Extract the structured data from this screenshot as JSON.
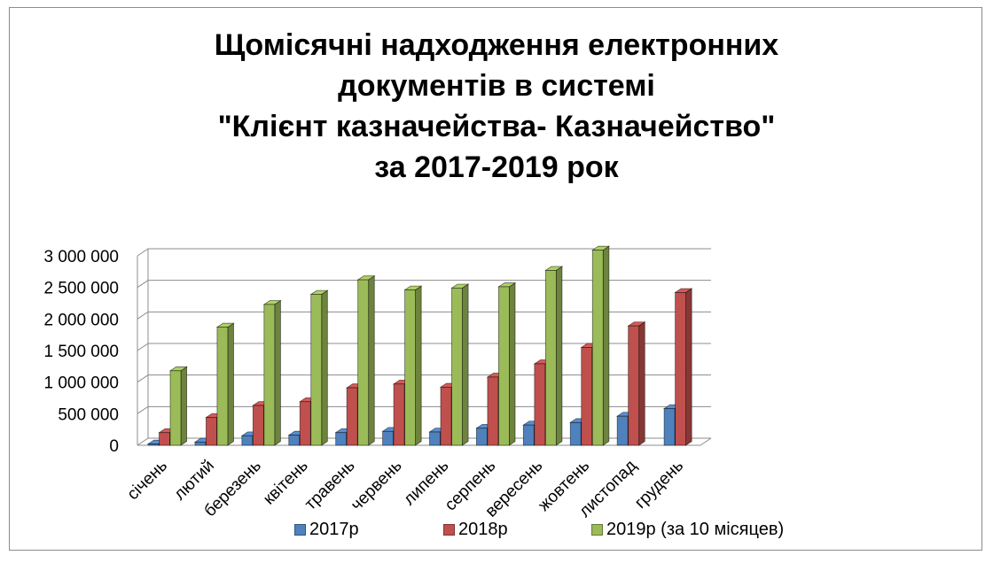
{
  "chart_data": {
    "type": "bar",
    "title_lines": [
      "Щомісячні надходження електронних",
      "документів в системі",
      "\"Клієнт казначейства- Казначейство\"",
      "за 2017-2019 рок"
    ],
    "categories": [
      "січень",
      "лютий",
      "березень",
      "квітень",
      "травень",
      "червень",
      "липень",
      "серпень",
      "вересень",
      "жовтень",
      "листопад",
      "грудень"
    ],
    "series": [
      {
        "name": "2017р",
        "color": "#4f81bd",
        "values": [
          20000,
          50000,
          150000,
          160000,
          200000,
          220000,
          210000,
          270000,
          320000,
          360000,
          460000,
          580000
        ]
      },
      {
        "name": "2018р",
        "color": "#c0504d",
        "values": [
          200000,
          440000,
          630000,
          690000,
          910000,
          970000,
          920000,
          1080000,
          1290000,
          1550000,
          1890000,
          2420000
        ]
      },
      {
        "name": "2019р (за 10 місяцев)",
        "color": "#9bbb59",
        "values": [
          1180000,
          1870000,
          2230000,
          2390000,
          2620000,
          2460000,
          2490000,
          2510000,
          2770000,
          3090000,
          null,
          null
        ]
      }
    ],
    "y_ticks": [
      "0",
      "500 000",
      "1 000 000",
      "1 500 000",
      "2 000 000",
      "2 500 000",
      "3 000 000"
    ],
    "ylim": [
      0,
      3000000
    ],
    "grid": true,
    "legend_position": "bottom"
  }
}
